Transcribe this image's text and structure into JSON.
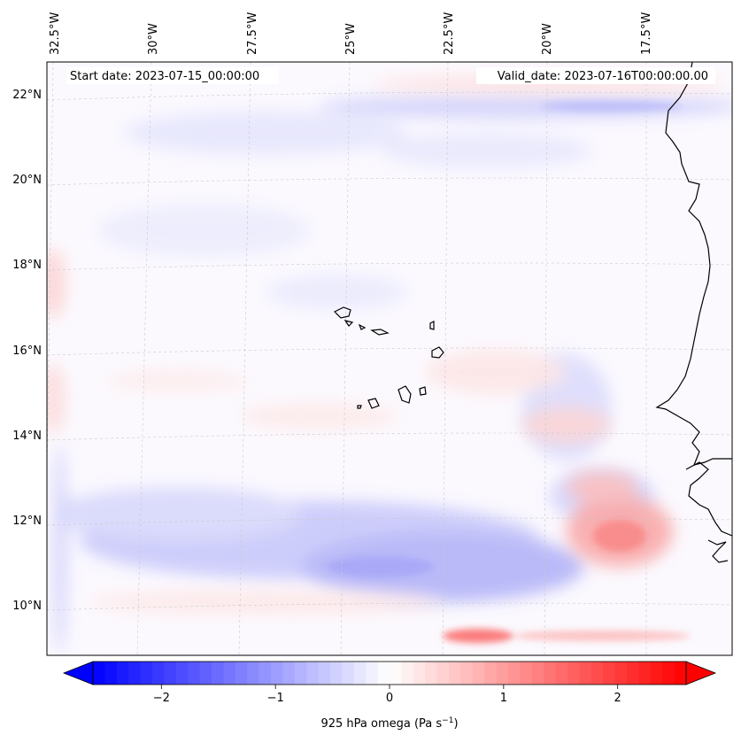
{
  "map": {
    "start_date": "Start date: 2023-07-15_00:00:00",
    "valid_date": "Valid_date: 2023-07-16T00:00:00.00",
    "lon_labels": [
      "32.5°W",
      "30°W",
      "27.5°W",
      "25°W",
      "22.5°W",
      "20°W",
      "17.5°W"
    ],
    "lat_labels": [
      "22°N",
      "20°N",
      "18°N",
      "16°N",
      "14°N",
      "12°N",
      "10°N"
    ]
  },
  "colorbar": {
    "label_text": "925 hPa omega (Pa s",
    "label_sup": "−1",
    "label_close": ")",
    "ticks": [
      "−2",
      "−1",
      "0",
      "1",
      "2"
    ],
    "tick_values": [
      -2,
      -1,
      0,
      1,
      2
    ],
    "range": [
      -2.6,
      2.6
    ],
    "cmap": "bwr",
    "colors": {
      "neg": "#0000ff",
      "mid": "#ffffff",
      "pos": "#ff0000"
    }
  }
}
